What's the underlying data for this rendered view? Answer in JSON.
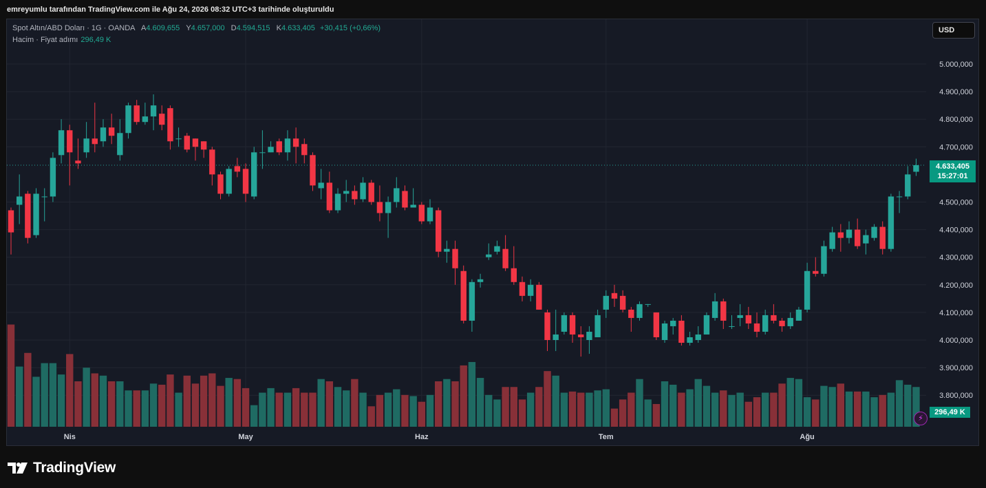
{
  "caption": "emreyumlu tarafından TradingView.com ile Ağu 24, 2026 08:32 UTC+3 tarihinde oluşturuldu",
  "legend": {
    "symbol": "Spot Altın/ABD Doları · 1G · OANDA",
    "o_key": "A",
    "o_val": "4.609,655",
    "h_key": "Y",
    "h_val": "4.657,000",
    "l_key": "D",
    "l_val": "4.594,515",
    "c_key": "K",
    "c_val": "4.633,405",
    "change": "+30,415 (+0,66%)"
  },
  "volume_legend": {
    "label": "Hacim · Fiyat adımı",
    "value": "296,49 K"
  },
  "currency_button": "USD",
  "last_price": {
    "price": "4.633,405",
    "countdown": "15:27:01"
  },
  "volume_tag": "296,49 K",
  "alert_icon": "lightning-bolt-icon",
  "brand": {
    "name": "TradingView",
    "icon": "tradingview-logo-icon"
  },
  "colors": {
    "up": "#26a69a",
    "down": "#f23645",
    "background": "#161a25",
    "tag": "#089981"
  },
  "chart_data": {
    "type": "candlestick",
    "y_axis": {
      "ticks": [
        5000000,
        4900000,
        4800000,
        4700000,
        4500000,
        4400000,
        4300000,
        4200000,
        4100000,
        4000000,
        3900000,
        3800000
      ],
      "tick_labels": [
        "5.000,000",
        "4.900,000",
        "4.800,000",
        "4.700,000",
        "4.500,000",
        "4.400,000",
        "4.300,000",
        "4.200,000",
        "4.100,000",
        "4.000,000",
        "3.900,000",
        "3.800,000"
      ],
      "range": [
        3750000,
        5100000
      ]
    },
    "x_axis": {
      "labels": [
        "Nis",
        "May",
        "Haz",
        "Tem",
        "Ağu"
      ],
      "label_index": [
        7,
        28,
        49,
        71,
        95
      ]
    },
    "grid": true,
    "candles": [
      [
        4470000,
        4390000,
        4310000,
        4480000
      ],
      [
        4490000,
        4520000,
        4420000,
        4600000
      ],
      [
        4530000,
        4370000,
        4350000,
        4540000
      ],
      [
        4380000,
        4530000,
        4370000,
        4550000
      ],
      [
        4520000,
        4520000,
        4430000,
        4550000
      ],
      [
        4520000,
        4660000,
        4500000,
        4680000
      ],
      [
        4670000,
        4760000,
        4640000,
        4800000
      ],
      [
        4760000,
        4680000,
        4560000,
        4780000
      ],
      [
        4650000,
        4640000,
        4620000,
        4730000
      ],
      [
        4680000,
        4730000,
        4660000,
        4790000
      ],
      [
        4730000,
        4710000,
        4680000,
        4860000
      ],
      [
        4720000,
        4770000,
        4700000,
        4800000
      ],
      [
        4770000,
        4740000,
        4710000,
        4820000
      ],
      [
        4670000,
        4750000,
        4650000,
        4800000
      ],
      [
        4750000,
        4850000,
        4730000,
        4860000
      ],
      [
        4850000,
        4790000,
        4780000,
        4870000
      ],
      [
        4790000,
        4810000,
        4780000,
        4860000
      ],
      [
        4810000,
        4850000,
        4760000,
        4890000
      ],
      [
        4820000,
        4780000,
        4760000,
        4850000
      ],
      [
        4840000,
        4720000,
        4690000,
        4850000
      ],
      [
        4730000,
        4730000,
        4700000,
        4770000
      ],
      [
        4740000,
        4690000,
        4680000,
        4750000
      ],
      [
        4730000,
        4700000,
        4650000,
        4730000
      ],
      [
        4720000,
        4690000,
        4660000,
        4720000
      ],
      [
        4690000,
        4600000,
        4560000,
        4700000
      ],
      [
        4600000,
        4530000,
        4510000,
        4610000
      ],
      [
        4530000,
        4620000,
        4520000,
        4630000
      ],
      [
        4630000,
        4610000,
        4590000,
        4660000
      ],
      [
        4620000,
        4530000,
        4500000,
        4640000
      ],
      [
        4520000,
        4680000,
        4510000,
        4700000
      ],
      [
        4680000,
        4680000,
        4620000,
        4760000
      ],
      [
        4680000,
        4700000,
        4680000,
        4720000
      ],
      [
        4720000,
        4680000,
        4670000,
        4730000
      ],
      [
        4680000,
        4730000,
        4650000,
        4760000
      ],
      [
        4730000,
        4700000,
        4640000,
        4770000
      ],
      [
        4710000,
        4670000,
        4640000,
        4730000
      ],
      [
        4670000,
        4560000,
        4540000,
        4680000
      ],
      [
        4550000,
        4570000,
        4510000,
        4620000
      ],
      [
        4570000,
        4470000,
        4460000,
        4610000
      ],
      [
        4470000,
        4530000,
        4460000,
        4550000
      ],
      [
        4530000,
        4540000,
        4500000,
        4580000
      ],
      [
        4540000,
        4510000,
        4490000,
        4560000
      ],
      [
        4510000,
        4570000,
        4500000,
        4590000
      ],
      [
        4570000,
        4500000,
        4490000,
        4580000
      ],
      [
        4500000,
        4460000,
        4430000,
        4560000
      ],
      [
        4460000,
        4500000,
        4370000,
        4520000
      ],
      [
        4500000,
        4550000,
        4480000,
        4590000
      ],
      [
        4540000,
        4480000,
        4470000,
        4560000
      ],
      [
        4480000,
        4490000,
        4480000,
        4550000
      ],
      [
        4490000,
        4430000,
        4420000,
        4500000
      ],
      [
        4430000,
        4480000,
        4420000,
        4510000
      ],
      [
        4470000,
        4320000,
        4300000,
        4480000
      ],
      [
        4320000,
        4330000,
        4280000,
        4360000
      ],
      [
        4330000,
        4260000,
        4200000,
        4360000
      ],
      [
        4250000,
        4070000,
        4060000,
        4270000
      ],
      [
        4070000,
        4210000,
        4030000,
        4220000
      ],
      [
        4210000,
        4220000,
        4190000,
        4240000
      ],
      [
        4300000,
        4310000,
        4290000,
        4350000
      ],
      [
        4320000,
        4340000,
        4310000,
        4360000
      ],
      [
        4330000,
        4260000,
        4250000,
        4380000
      ],
      [
        4260000,
        4210000,
        4200000,
        4340000
      ],
      [
        4210000,
        4160000,
        4140000,
        4230000
      ],
      [
        4160000,
        4200000,
        4140000,
        4220000
      ],
      [
        4200000,
        4110000,
        4110000,
        4210000
      ],
      [
        4100000,
        4000000,
        3960000,
        4110000
      ],
      [
        4000000,
        4020000,
        3960000,
        4110000
      ],
      [
        4030000,
        4090000,
        4020000,
        4100000
      ],
      [
        4090000,
        4020000,
        3990000,
        4100000
      ],
      [
        4020000,
        4010000,
        3940000,
        4050000
      ],
      [
        4000000,
        4030000,
        3950000,
        4050000
      ],
      [
        4010000,
        4090000,
        4010000,
        4110000
      ],
      [
        4110000,
        4160000,
        4080000,
        4180000
      ],
      [
        4170000,
        4150000,
        4120000,
        4200000
      ],
      [
        4160000,
        4110000,
        4100000,
        4180000
      ],
      [
        4110000,
        4080000,
        4030000,
        4120000
      ],
      [
        4080000,
        4130000,
        4070000,
        4140000
      ],
      [
        4130000,
        4130000,
        4120000,
        4130000
      ],
      [
        4100000,
        4010000,
        4000000,
        4100000
      ],
      [
        4000000,
        4060000,
        3990000,
        4070000
      ],
      [
        4050000,
        4070000,
        4020000,
        4080000
      ],
      [
        4070000,
        3990000,
        3980000,
        4090000
      ],
      [
        3990000,
        4010000,
        3980000,
        4030000
      ],
      [
        4000000,
        4020000,
        3990000,
        4050000
      ],
      [
        4020000,
        4090000,
        4020000,
        4100000
      ],
      [
        4080000,
        4140000,
        4070000,
        4170000
      ],
      [
        4140000,
        4070000,
        4040000,
        4150000
      ],
      [
        4050000,
        4050000,
        4040000,
        4090000
      ],
      [
        4080000,
        4090000,
        4050000,
        4130000
      ],
      [
        4090000,
        4060000,
        4040000,
        4120000
      ],
      [
        4060000,
        4030000,
        4010000,
        4100000
      ],
      [
        4030000,
        4090000,
        4020000,
        4110000
      ],
      [
        4090000,
        4070000,
        4060000,
        4130000
      ],
      [
        4070000,
        4050000,
        4030000,
        4080000
      ],
      [
        4050000,
        4080000,
        4040000,
        4100000
      ],
      [
        4070000,
        4110000,
        4070000,
        4120000
      ],
      [
        4110000,
        4250000,
        4100000,
        4280000
      ],
      [
        4250000,
        4240000,
        4230000,
        4300000
      ],
      [
        4240000,
        4340000,
        4230000,
        4360000
      ],
      [
        4330000,
        4390000,
        4320000,
        4410000
      ],
      [
        4390000,
        4370000,
        4320000,
        4420000
      ],
      [
        4370000,
        4400000,
        4350000,
        4430000
      ],
      [
        4400000,
        4340000,
        4330000,
        4440000
      ],
      [
        4350000,
        4380000,
        4310000,
        4400000
      ],
      [
        4370000,
        4410000,
        4360000,
        4420000
      ],
      [
        4410000,
        4330000,
        4310000,
        4430000
      ],
      [
        4330000,
        4520000,
        4320000,
        4530000
      ],
      [
        4520000,
        4520000,
        4460000,
        4540000
      ],
      [
        4520000,
        4600000,
        4510000,
        4630000
      ],
      [
        4609655,
        4633405,
        4594515,
        4657000
      ]
    ],
    "volume": [
      0.9,
      0.53,
      0.65,
      0.44,
      0.56,
      0.56,
      0.46,
      0.64,
      0.4,
      0.52,
      0.47,
      0.45,
      0.4,
      0.4,
      0.32,
      0.32,
      0.32,
      0.38,
      0.37,
      0.46,
      0.3,
      0.45,
      0.38,
      0.45,
      0.47,
      0.36,
      0.43,
      0.42,
      0.34,
      0.19,
      0.3,
      0.34,
      0.3,
      0.3,
      0.34,
      0.3,
      0.3,
      0.42,
      0.4,
      0.35,
      0.32,
      0.42,
      0.3,
      0.18,
      0.28,
      0.3,
      0.33,
      0.28,
      0.27,
      0.22,
      0.28,
      0.4,
      0.42,
      0.4,
      0.54,
      0.57,
      0.43,
      0.28,
      0.24,
      0.35,
      0.35,
      0.24,
      0.3,
      0.35,
      0.49,
      0.45,
      0.3,
      0.31,
      0.3,
      0.3,
      0.32,
      0.33,
      0.16,
      0.24,
      0.3,
      0.42,
      0.24,
      0.2,
      0.4,
      0.37,
      0.3,
      0.33,
      0.42,
      0.36,
      0.3,
      0.32,
      0.28,
      0.3,
      0.22,
      0.26,
      0.3,
      0.3,
      0.38,
      0.43,
      0.42,
      0.26,
      0.24,
      0.36,
      0.35,
      0.38,
      0.31,
      0.31,
      0.31,
      0.26,
      0.28,
      0.3,
      0.41,
      0.37,
      0.35
    ]
  }
}
